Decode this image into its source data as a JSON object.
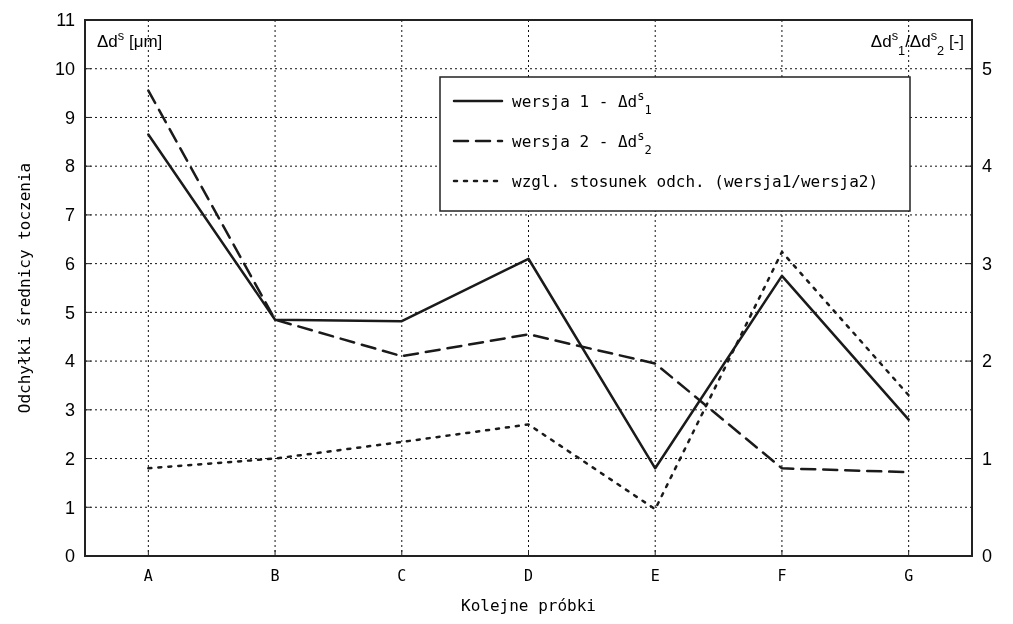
{
  "chart_data": {
    "type": "line",
    "xlabel": "Kolejne próbki",
    "ylabel": "Odchyłki średnicy toczenia",
    "y2label": "Δd$^{s}$$_{1}$/Δd$^{s}$$_{2}$  [-]",
    "annotations": [
      "Δd$^{s}$ [μm]"
    ],
    "categories": [
      "A",
      "B",
      "C",
      "D",
      "E",
      "F",
      "G"
    ],
    "series": [
      {
        "name": "wersja 1 - Δd$^{s}$$_{1}$",
        "color": "#1a1a1a",
        "line_style": "solid",
        "values": [
          8.65,
          4.85,
          4.82,
          6.1,
          1.8,
          5.75,
          2.8
        ]
      },
      {
        "name": "wersja 2 - Δd$^{s}$$_{2}$",
        "color": "#1a1a1a",
        "line_style": "dashed",
        "values": [
          9.55,
          4.85,
          4.1,
          4.55,
          3.95,
          1.8,
          1.72
        ]
      },
      {
        "name": "wzgl. stosunek odch. (wersja1/wersja2)",
        "color": "#1a1a1a",
        "line_style": "dotted",
        "axis": "y2",
        "values": [
          0.9,
          1.0,
          1.17,
          1.35,
          0.48,
          3.12,
          1.65
        ]
      }
    ],
    "ylim": [
      0,
      11
    ],
    "yticks": [
      0,
      1,
      2,
      3,
      4,
      5,
      6,
      7,
      8,
      9,
      10,
      11
    ],
    "y2lim": [
      0,
      5.5
    ],
    "y2ticks": [
      0,
      1,
      2,
      3,
      4,
      5
    ],
    "grid": true,
    "legend": "top right"
  }
}
